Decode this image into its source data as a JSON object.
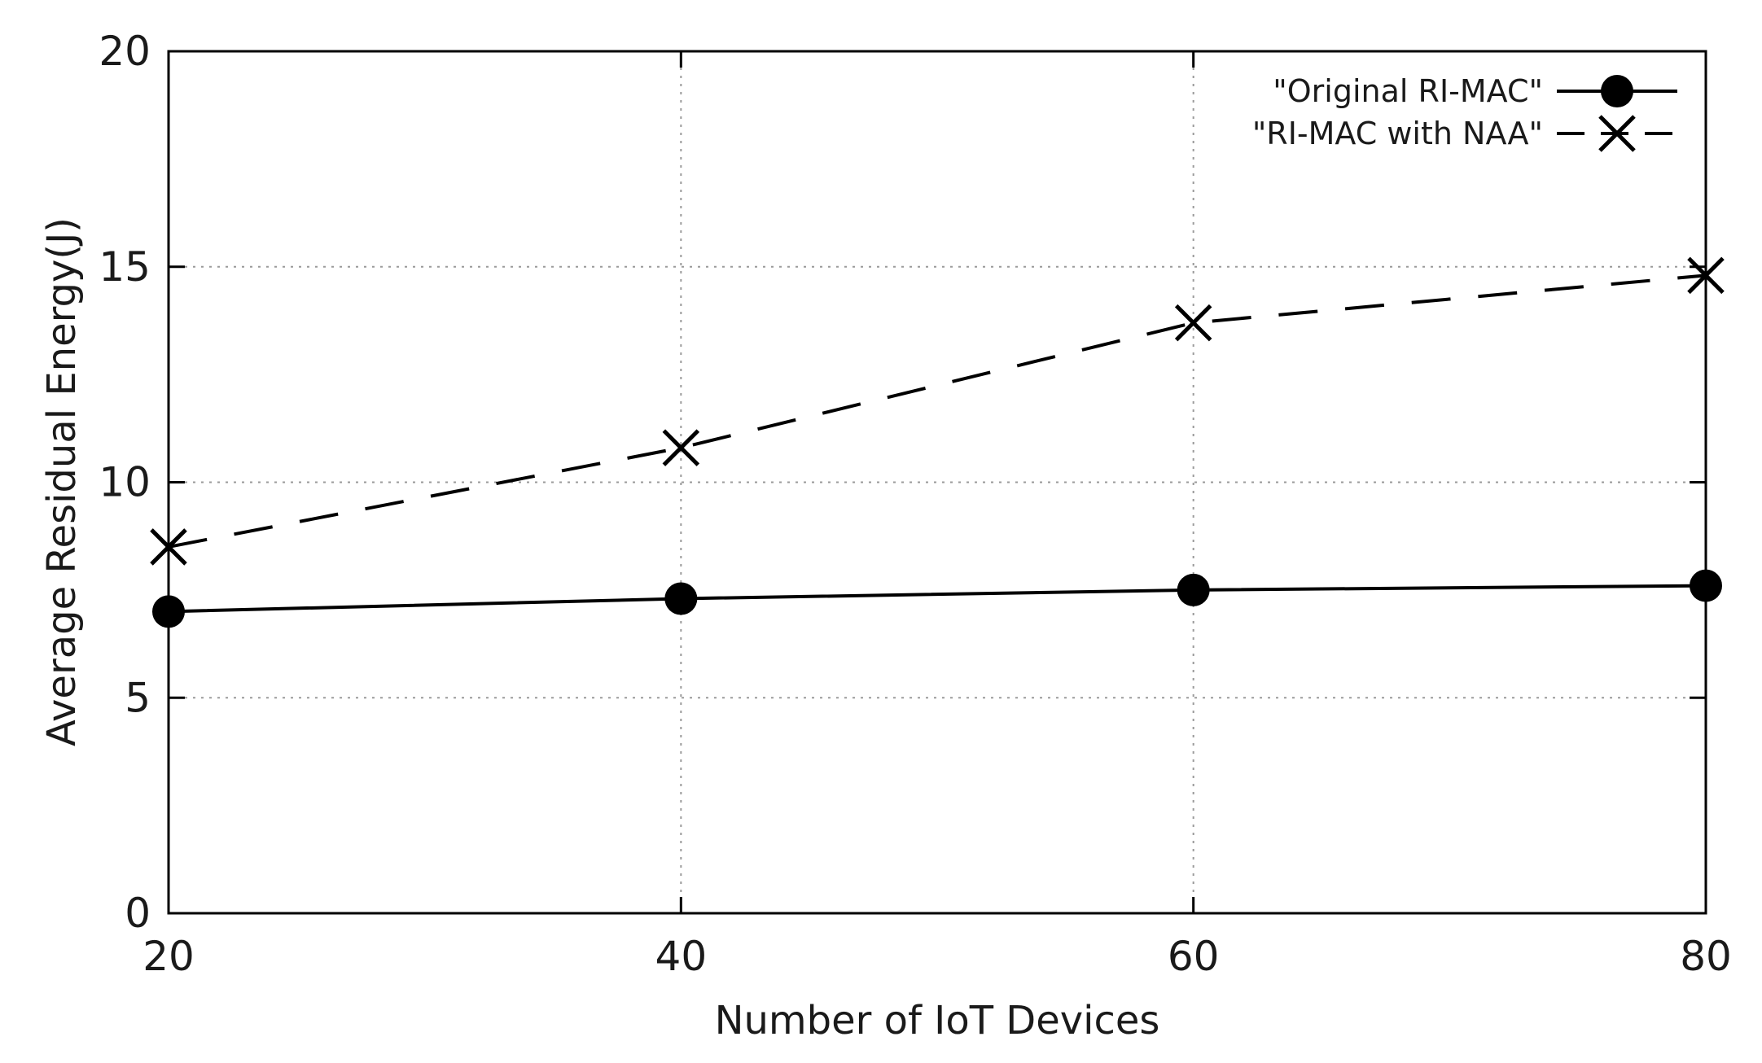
{
  "chart_data": {
    "type": "line",
    "title": "",
    "xlabel": "Number of IoT Devices",
    "ylabel": "Average Residual Energy(J)",
    "x": [
      20,
      40,
      60,
      80
    ],
    "xlim": [
      20,
      80
    ],
    "ylim": [
      0,
      20
    ],
    "xticks": [
      "20",
      "40",
      "60",
      "80"
    ],
    "yticks": [
      "0",
      "5",
      "10",
      "15",
      "20"
    ],
    "grid": true,
    "legend_position": "top-right",
    "series": [
      {
        "name": "\"Original RI-MAC\"",
        "marker": "circle",
        "line": "solid",
        "color": "#000000",
        "values": [
          7.0,
          7.3,
          7.5,
          7.6
        ]
      },
      {
        "name": "\"RI-MAC with NAA\"",
        "marker": "x",
        "line": "dashed",
        "color": "#000000",
        "values": [
          8.5,
          10.8,
          13.7,
          14.8
        ]
      }
    ]
  }
}
